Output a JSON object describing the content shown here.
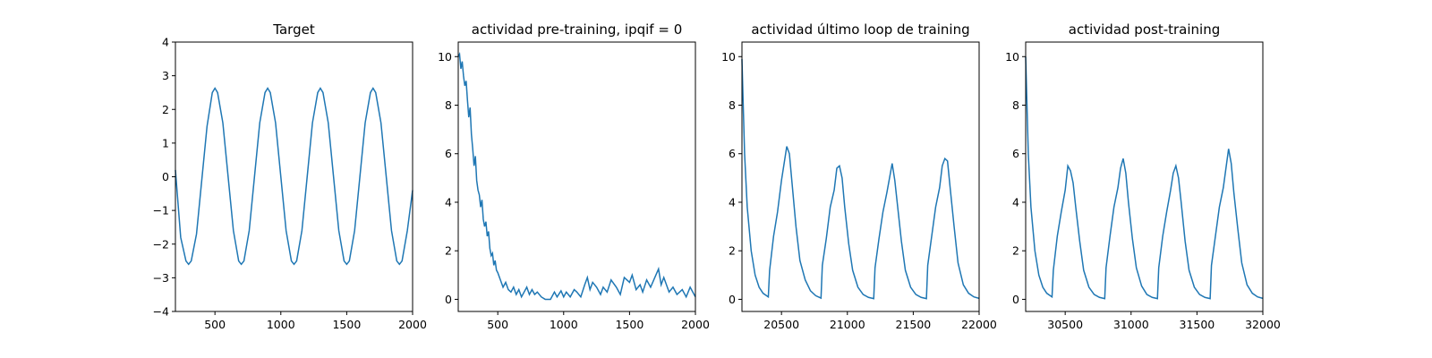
{
  "chart_data": [
    {
      "type": "line",
      "title": "Target",
      "xlim": [
        200,
        2000
      ],
      "ylim": [
        -4,
        4
      ],
      "xticks": [
        500,
        1000,
        1500,
        2000
      ],
      "yticks": [
        -4,
        -3,
        -2,
        -1,
        0,
        1,
        2,
        3,
        4
      ],
      "xtick_labels": [
        "500",
        "1000",
        "1500",
        "2000"
      ],
      "ytick_labels": [
        "−4",
        "−3",
        "−2",
        "−1",
        "0",
        "1",
        "2",
        "3",
        "4"
      ],
      "color": "#1f77b4",
      "series": [
        {
          "x": [
            200,
            240,
            280,
            300,
            320,
            360,
            400,
            440,
            480,
            500,
            520,
            560,
            600,
            640,
            680,
            700,
            720,
            760,
            800,
            840,
            880,
            900,
            920,
            960,
            1000,
            1040,
            1080,
            1100,
            1120,
            1160,
            1200,
            1240,
            1280,
            1300,
            1320,
            1360,
            1400,
            1440,
            1480,
            1500,
            1520,
            1560,
            1600,
            1640,
            1680,
            1700,
            1720,
            1760,
            1800,
            1840,
            1880,
            1900,
            1920,
            1960,
            2000
          ],
          "y": [
            0.2,
            -1.8,
            -2.5,
            -2.6,
            -2.5,
            -1.7,
            -0.1,
            1.5,
            2.5,
            2.63,
            2.5,
            1.6,
            0.0,
            -1.6,
            -2.5,
            -2.6,
            -2.5,
            -1.6,
            0.0,
            1.6,
            2.5,
            2.63,
            2.5,
            1.6,
            0.0,
            -1.6,
            -2.5,
            -2.6,
            -2.5,
            -1.6,
            0.0,
            1.6,
            2.5,
            2.63,
            2.5,
            1.6,
            0.0,
            -1.6,
            -2.5,
            -2.6,
            -2.5,
            -1.6,
            0.0,
            1.6,
            2.5,
            2.63,
            2.5,
            1.6,
            0.0,
            -1.6,
            -2.5,
            -2.6,
            -2.5,
            -1.6,
            -0.4
          ]
        }
      ]
    },
    {
      "type": "line",
      "title": "actividad pre-training, ipqif = 0",
      "xlim": [
        200,
        2000
      ],
      "ylim": [
        -0.5,
        10.6
      ],
      "xticks": [
        500,
        1000,
        1500,
        2000
      ],
      "yticks": [
        0,
        2,
        4,
        6,
        8,
        10
      ],
      "xtick_labels": [
        "500",
        "1000",
        "1500",
        "2000"
      ],
      "ytick_labels": [
        "0",
        "2",
        "4",
        "6",
        "8",
        "10"
      ],
      "color": "#1f77b4",
      "series": [
        {
          "x": [
            200,
            210,
            220,
            230,
            240,
            250,
            260,
            270,
            280,
            290,
            300,
            310,
            320,
            330,
            340,
            350,
            360,
            370,
            380,
            390,
            400,
            410,
            420,
            430,
            440,
            450,
            460,
            470,
            480,
            490,
            500,
            520,
            540,
            560,
            580,
            600,
            620,
            640,
            660,
            680,
            700,
            720,
            740,
            760,
            780,
            800,
            830,
            860,
            900,
            930,
            950,
            980,
            1000,
            1020,
            1050,
            1080,
            1100,
            1130,
            1160,
            1180,
            1200,
            1220,
            1250,
            1280,
            1300,
            1330,
            1360,
            1400,
            1430,
            1460,
            1500,
            1520,
            1550,
            1580,
            1600,
            1630,
            1660,
            1700,
            1720,
            1740,
            1760,
            1800,
            1830,
            1860,
            1900,
            1930,
            1960,
            2000
          ],
          "y": [
            10.0,
            10.1,
            9.5,
            9.8,
            9.2,
            8.8,
            9.0,
            8.2,
            7.5,
            7.9,
            6.8,
            6.2,
            5.5,
            5.9,
            4.9,
            4.5,
            4.3,
            3.8,
            4.1,
            3.3,
            3.0,
            3.2,
            2.6,
            2.8,
            2.1,
            1.8,
            1.9,
            1.4,
            1.6,
            1.2,
            1.1,
            0.8,
            0.5,
            0.7,
            0.4,
            0.3,
            0.5,
            0.2,
            0.4,
            0.1,
            0.3,
            0.5,
            0.2,
            0.4,
            0.2,
            0.3,
            0.1,
            0.0,
            0.0,
            0.3,
            0.1,
            0.35,
            0.1,
            0.3,
            0.1,
            0.4,
            0.3,
            0.1,
            0.6,
            0.9,
            0.4,
            0.7,
            0.5,
            0.2,
            0.5,
            0.3,
            0.8,
            0.5,
            0.2,
            0.9,
            0.7,
            1.0,
            0.4,
            0.6,
            0.3,
            0.8,
            0.5,
            1.0,
            1.25,
            0.6,
            0.9,
            0.3,
            0.5,
            0.2,
            0.4,
            0.1,
            0.5,
            0.1
          ]
        }
      ]
    },
    {
      "type": "line",
      "title": "actividad último loop de training",
      "xlim": [
        20200,
        22000
      ],
      "ylim": [
        -0.5,
        10.6
      ],
      "xticks": [
        20500,
        21000,
        21500,
        22000
      ],
      "yticks": [
        0,
        2,
        4,
        6,
        8,
        10
      ],
      "xtick_labels": [
        "20500",
        "21000",
        "21500",
        "22000"
      ],
      "ytick_labels": [
        "0",
        "2",
        "4",
        "6",
        "8",
        "10"
      ],
      "color": "#1f77b4",
      "series": [
        {
          "x": [
            20200,
            20220,
            20240,
            20270,
            20300,
            20330,
            20360,
            20400,
            20410,
            20440,
            20470,
            20500,
            20520,
            20540,
            20560,
            20580,
            20610,
            20640,
            20680,
            20720,
            20760,
            20800,
            20810,
            20840,
            20870,
            20900,
            20920,
            20940,
            20960,
            20980,
            21010,
            21040,
            21080,
            21120,
            21160,
            21200,
            21210,
            21240,
            21270,
            21300,
            21320,
            21340,
            21360,
            21380,
            21410,
            21440,
            21480,
            21520,
            21560,
            21600,
            21610,
            21640,
            21670,
            21700,
            21720,
            21740,
            21760,
            21780,
            21810,
            21840,
            21880,
            21920,
            21960,
            22000
          ],
          "y": [
            9.9,
            6.0,
            3.8,
            2.0,
            1.0,
            0.5,
            0.25,
            0.1,
            1.2,
            2.6,
            3.6,
            4.9,
            5.6,
            6.3,
            6.0,
            4.8,
            3.0,
            1.6,
            0.8,
            0.35,
            0.15,
            0.05,
            1.4,
            2.5,
            3.8,
            4.5,
            5.4,
            5.5,
            5.0,
            3.8,
            2.3,
            1.2,
            0.5,
            0.2,
            0.08,
            0.03,
            1.3,
            2.5,
            3.6,
            4.4,
            5.0,
            5.6,
            4.9,
            3.9,
            2.4,
            1.2,
            0.5,
            0.2,
            0.08,
            0.03,
            1.4,
            2.6,
            3.8,
            4.6,
            5.5,
            5.8,
            5.7,
            4.6,
            3.0,
            1.5,
            0.6,
            0.25,
            0.1,
            0.04
          ]
        }
      ]
    },
    {
      "type": "line",
      "title": "actividad post-training",
      "xlim": [
        30200,
        32000
      ],
      "ylim": [
        -0.5,
        10.6
      ],
      "xticks": [
        30500,
        31000,
        31500,
        32000
      ],
      "yticks": [
        0,
        2,
        4,
        6,
        8,
        10
      ],
      "xtick_labels": [
        "30500",
        "31000",
        "31500",
        "32000"
      ],
      "ytick_labels": [
        "0",
        "2",
        "4",
        "6",
        "8",
        "10"
      ],
      "color": "#1f77b4",
      "series": [
        {
          "x": [
            30200,
            30220,
            30240,
            30270,
            30300,
            30330,
            30360,
            30400,
            30410,
            30440,
            30470,
            30500,
            30520,
            30540,
            30560,
            30580,
            30610,
            30640,
            30680,
            30720,
            30760,
            30800,
            30810,
            30840,
            30870,
            30900,
            30920,
            30940,
            30960,
            30980,
            31010,
            31040,
            31080,
            31120,
            31160,
            31200,
            31210,
            31240,
            31270,
            31300,
            31320,
            31340,
            31360,
            31380,
            31410,
            31440,
            31480,
            31520,
            31560,
            31600,
            31610,
            31640,
            31670,
            31700,
            31720,
            31740,
            31760,
            31780,
            31810,
            31840,
            31880,
            31920,
            31960,
            32000
          ],
          "y": [
            10.0,
            6.0,
            3.8,
            2.0,
            1.0,
            0.5,
            0.25,
            0.1,
            1.2,
            2.6,
            3.6,
            4.5,
            5.5,
            5.3,
            4.8,
            3.8,
            2.4,
            1.2,
            0.5,
            0.2,
            0.08,
            0.03,
            1.3,
            2.6,
            3.8,
            4.6,
            5.4,
            5.8,
            5.2,
            4.0,
            2.5,
            1.3,
            0.55,
            0.2,
            0.08,
            0.03,
            1.3,
            2.6,
            3.6,
            4.5,
            5.2,
            5.5,
            5.0,
            4.0,
            2.4,
            1.2,
            0.5,
            0.2,
            0.08,
            0.03,
            1.4,
            2.6,
            3.8,
            4.6,
            5.4,
            6.2,
            5.6,
            4.4,
            2.9,
            1.5,
            0.6,
            0.25,
            0.1,
            0.04
          ]
        }
      ]
    }
  ]
}
